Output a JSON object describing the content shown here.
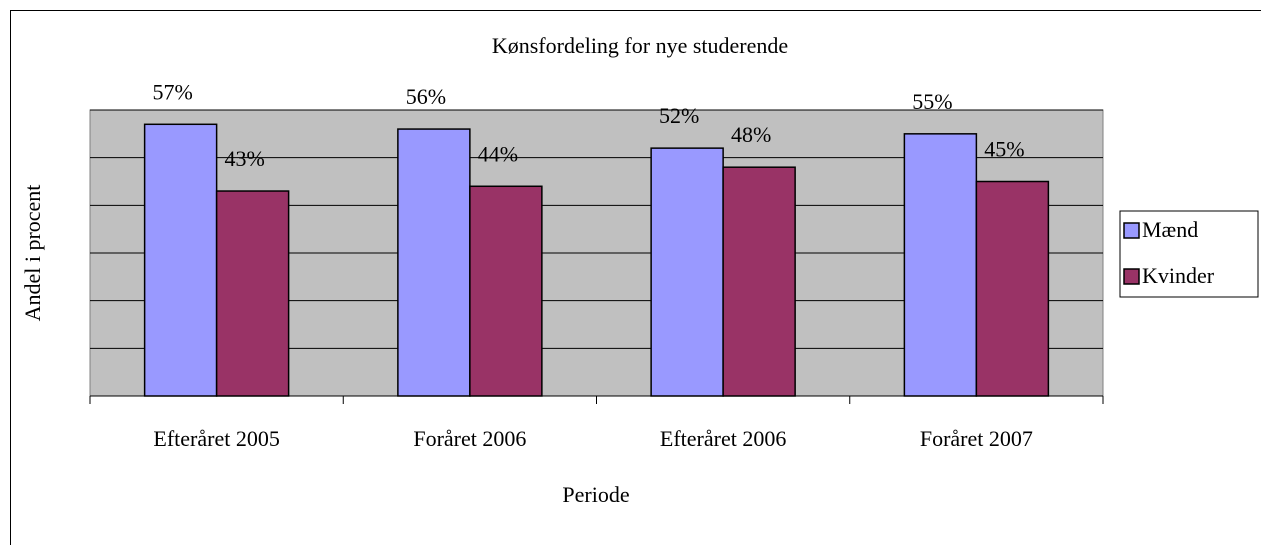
{
  "chart_data": {
    "type": "bar",
    "title": "Kønsfordeling for nye studerende",
    "x_label": "Periode",
    "y_label": "Andel i procent",
    "categories": [
      "Efteråret 2005",
      "Foråret 2006",
      "Efteråret 2006",
      "Foråret 2007"
    ],
    "series": [
      {
        "name": "Mænd",
        "color": "#9999ff",
        "values": [
          57,
          56,
          52,
          55
        ],
        "value_labels": [
          "57%",
          "56%",
          "52%",
          "55%"
        ]
      },
      {
        "name": "Kvinder",
        "color": "#993366",
        "values": [
          43,
          44,
          48,
          45
        ],
        "value_labels": [
          "43%",
          "44%",
          "48%",
          "45%"
        ]
      }
    ],
    "ylim": [
      0,
      60
    ],
    "yticks": [
      0,
      10,
      20,
      30,
      40,
      50,
      60
    ],
    "grid": true,
    "legend": "right"
  }
}
